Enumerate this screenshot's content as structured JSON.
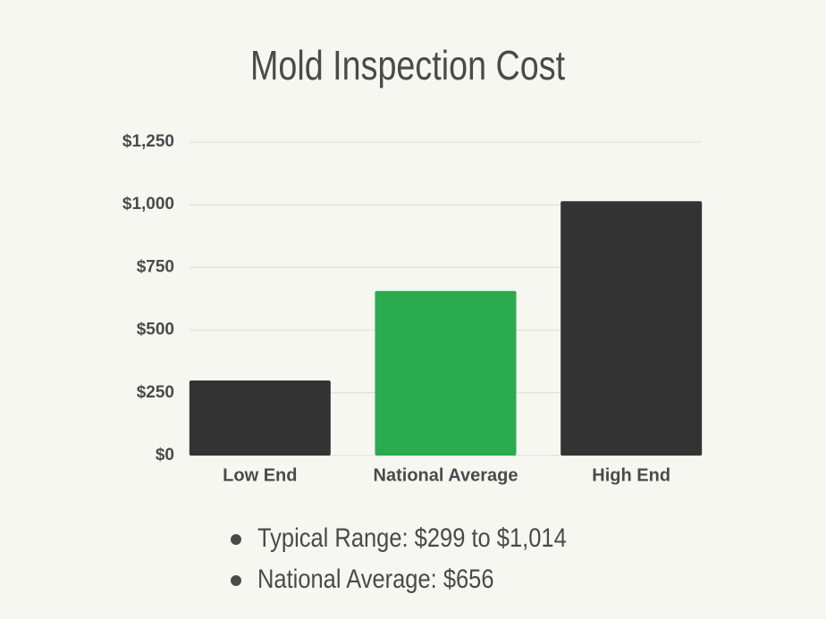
{
  "chart_data": {
    "type": "bar",
    "title": "Mold Inspection Cost",
    "categories": [
      "Low End",
      "National Average",
      "High End"
    ],
    "values": [
      299,
      656,
      1014
    ],
    "colors": [
      "#333333",
      "#2aab4f",
      "#333333"
    ],
    "ylim": [
      0,
      1250
    ],
    "yticks": [
      {
        "value": 0,
        "label": "$0"
      },
      {
        "value": 250,
        "label": "$250"
      },
      {
        "value": 500,
        "label": "$500"
      },
      {
        "value": 750,
        "label": "$750"
      },
      {
        "value": 1000,
        "label": "$1,000"
      },
      {
        "value": 1250,
        "label": "$1,250"
      }
    ],
    "grid": true,
    "notes": [
      "Typical Range: $299 to $1,014",
      "National Average: $656"
    ]
  }
}
